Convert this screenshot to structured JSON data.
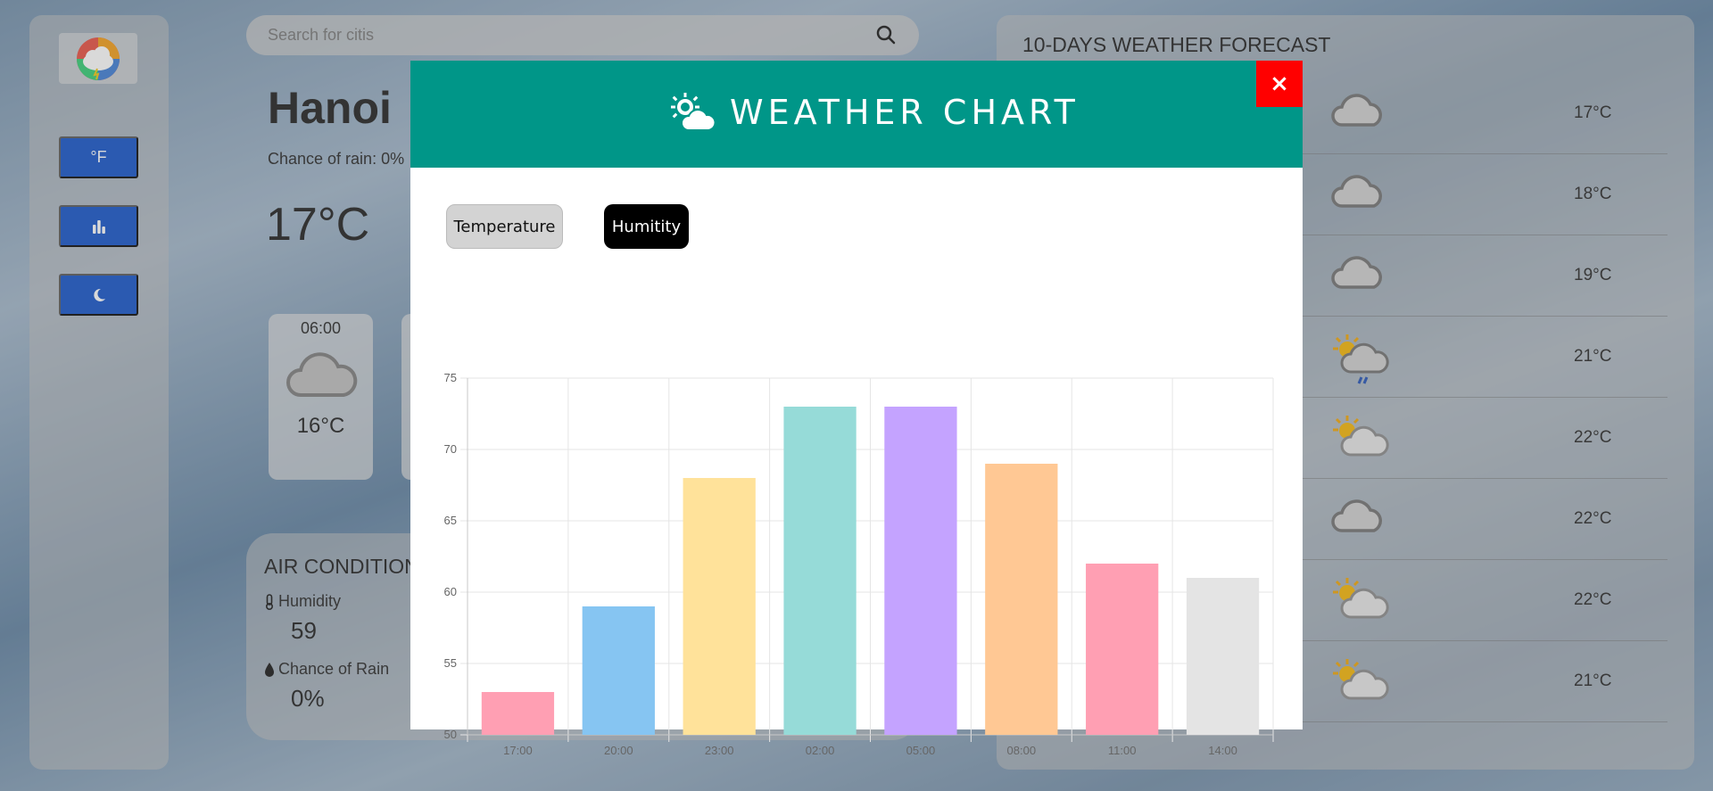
{
  "search": {
    "placeholder": "Search for citis"
  },
  "sidebar": {
    "buttons": [
      {
        "label": "°F",
        "icon": "fahrenheit-icon"
      },
      {
        "label": "",
        "icon": "bar-chart-icon"
      },
      {
        "label": "",
        "icon": "moon-icon"
      }
    ]
  },
  "current": {
    "city": "Hanoi",
    "chance_of_rain": "Chance of rain: 0%",
    "temperature": "17°C"
  },
  "hourly": [
    {
      "time": "06:00",
      "temp": "16°C",
      "icon": "cloud-icon"
    }
  ],
  "air_conditions": {
    "title": "AIR CONDITIONS",
    "humidity_label": "Humidity",
    "humidity_value": "59",
    "rain_label": "Chance of Rain",
    "rain_value": "0%"
  },
  "forecast": {
    "title": "10-DAYS WEATHER FORECAST",
    "rows": [
      {
        "icon": "cloud-icon",
        "temp": "17°C"
      },
      {
        "icon": "cloud-icon",
        "temp": "18°C"
      },
      {
        "icon": "cloud-icon",
        "temp": "19°C"
      },
      {
        "icon": "sun-cloud-rain-icon",
        "temp": "21°C"
      },
      {
        "icon": "sun-cloud-icon",
        "temp": "22°C"
      },
      {
        "icon": "cloud-icon",
        "temp": "22°C"
      },
      {
        "icon": "sun-cloud-icon",
        "temp": "22°C"
      },
      {
        "icon": "sun-cloud-icon",
        "temp": "21°C"
      }
    ]
  },
  "modal": {
    "title": "WEATHER CHART",
    "close_label": "×",
    "tabs": [
      {
        "label": "Temperature",
        "active": false
      },
      {
        "label": "Humitity",
        "active": true
      }
    ]
  },
  "colors": {
    "modal_header": "#009688",
    "close_button": "#ff0000",
    "sidebar_button": "#0e50c8"
  },
  "chart_data": {
    "type": "bar",
    "categories": [
      "17:00",
      "20:00",
      "23:00",
      "02:00",
      "05:00",
      "08:00",
      "11:00",
      "14:00"
    ],
    "values": [
      53,
      59,
      68,
      73,
      73,
      69,
      62,
      61
    ],
    "bar_colors": [
      "#ff9fb3",
      "#86c5f2",
      "#ffe29a",
      "#96dbd8",
      "#c4a3ff",
      "#ffc894",
      "#ff9fb3",
      "#e4e4e4"
    ],
    "ylim": [
      50,
      75
    ],
    "yticks": [
      50,
      55,
      60,
      65,
      70,
      75
    ],
    "grid": true,
    "legend": "none"
  }
}
